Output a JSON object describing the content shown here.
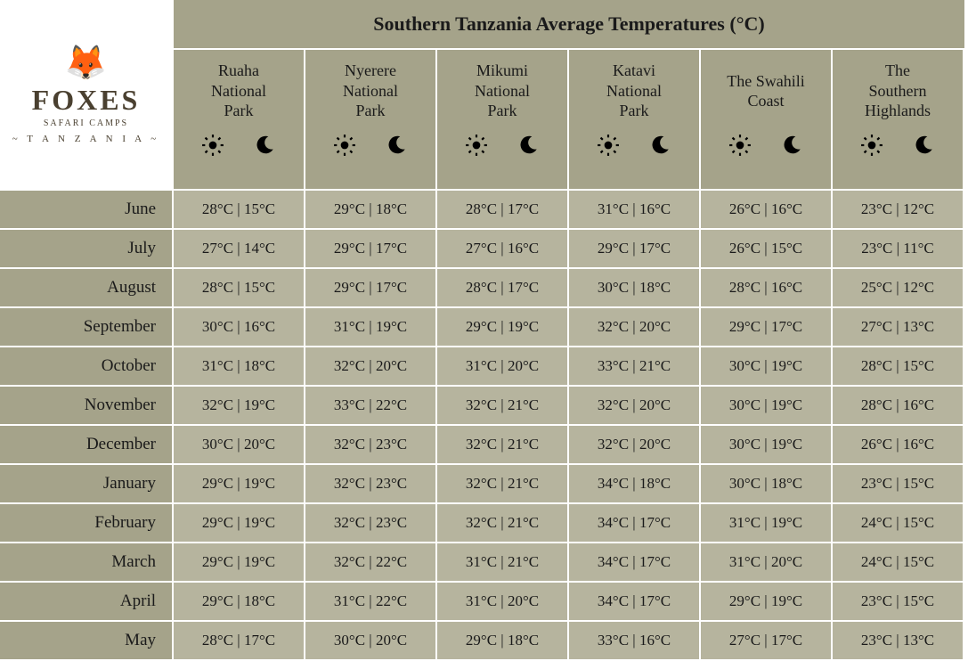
{
  "title": "Southern Tanzania Average Temperatures (°C)",
  "brand": {
    "name": "FOXES",
    "sub": "SAFARI CAMPS",
    "country": "~ T A N Z A N I A ~"
  },
  "colors": {
    "header_bg": "#a5a38a",
    "cell_bg": "#b6b49e",
    "border": "#ffffff",
    "text": "#1a1a1a",
    "logo_text": "#4a4030"
  },
  "unit": "°C",
  "locations": [
    "Ruaha\nNational\nPark",
    "Nyerere\nNational\nPark",
    "Mikumi\nNational\nPark",
    "Katavi\nNational\nPark",
    "The Swahili\nCoast",
    "The\nSouthern\nHighlands"
  ],
  "months": [
    "June",
    "July",
    "August",
    "September",
    "October",
    "November",
    "December",
    "January",
    "February",
    "March",
    "April",
    "May"
  ],
  "data": [
    [
      [
        28,
        15
      ],
      [
        29,
        18
      ],
      [
        28,
        17
      ],
      [
        31,
        16
      ],
      [
        26,
        16
      ],
      [
        23,
        12
      ]
    ],
    [
      [
        27,
        14
      ],
      [
        29,
        17
      ],
      [
        27,
        16
      ],
      [
        29,
        17
      ],
      [
        26,
        15
      ],
      [
        23,
        11
      ]
    ],
    [
      [
        28,
        15
      ],
      [
        29,
        17
      ],
      [
        28,
        17
      ],
      [
        30,
        18
      ],
      [
        28,
        16
      ],
      [
        25,
        12
      ]
    ],
    [
      [
        30,
        16
      ],
      [
        31,
        19
      ],
      [
        29,
        19
      ],
      [
        32,
        20
      ],
      [
        29,
        17
      ],
      [
        27,
        13
      ]
    ],
    [
      [
        31,
        18
      ],
      [
        32,
        20
      ],
      [
        31,
        20
      ],
      [
        33,
        21
      ],
      [
        30,
        19
      ],
      [
        28,
        15
      ]
    ],
    [
      [
        32,
        19
      ],
      [
        33,
        22
      ],
      [
        32,
        21
      ],
      [
        32,
        20
      ],
      [
        30,
        19
      ],
      [
        28,
        16
      ]
    ],
    [
      [
        30,
        20
      ],
      [
        32,
        23
      ],
      [
        32,
        21
      ],
      [
        32,
        20
      ],
      [
        30,
        19
      ],
      [
        26,
        16
      ]
    ],
    [
      [
        29,
        19
      ],
      [
        32,
        23
      ],
      [
        32,
        21
      ],
      [
        34,
        18
      ],
      [
        30,
        18
      ],
      [
        23,
        15
      ]
    ],
    [
      [
        29,
        19
      ],
      [
        32,
        23
      ],
      [
        32,
        21
      ],
      [
        34,
        17
      ],
      [
        31,
        19
      ],
      [
        24,
        15
      ]
    ],
    [
      [
        29,
        19
      ],
      [
        32,
        22
      ],
      [
        31,
        21
      ],
      [
        34,
        17
      ],
      [
        31,
        20
      ],
      [
        24,
        15
      ]
    ],
    [
      [
        29,
        18
      ],
      [
        31,
        22
      ],
      [
        31,
        20
      ],
      [
        34,
        17
      ],
      [
        29,
        19
      ],
      [
        23,
        15
      ]
    ],
    [
      [
        28,
        17
      ],
      [
        30,
        20
      ],
      [
        29,
        18
      ],
      [
        33,
        16
      ],
      [
        27,
        17
      ],
      [
        23,
        13
      ]
    ]
  ]
}
